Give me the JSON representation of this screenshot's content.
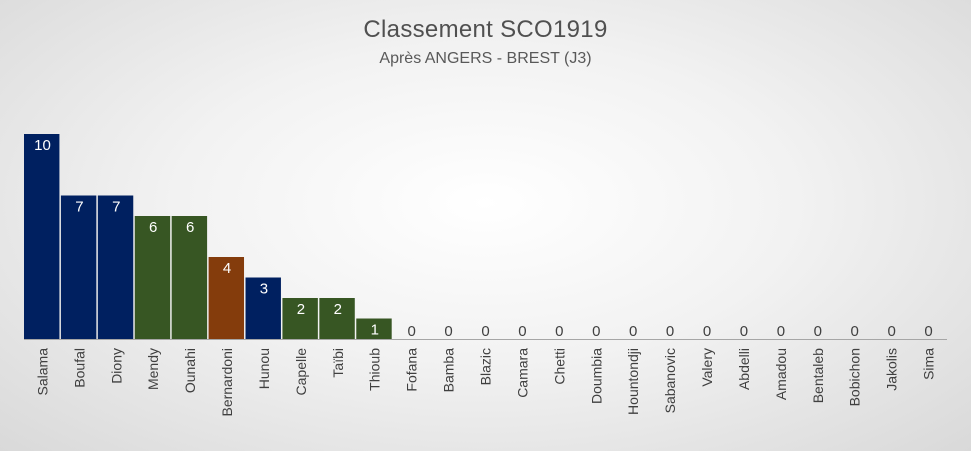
{
  "chart_data": {
    "type": "bar",
    "title": "Classement  SCO1919",
    "subtitle": "Après ANGERS - BREST (J3)",
    "categories": [
      "Salama",
      "Boufal",
      "Diony",
      "Mendy",
      "Ounahi",
      "Bernardoni",
      "Hunou",
      "Capelle",
      "Taïbi",
      "Thioub",
      "Fofana",
      "Bamba",
      "Blazic",
      "Camara",
      "Chetti",
      "Doumbia",
      "Hountondji",
      "Sabanovic",
      "Valery",
      "Abdelli",
      "Amadou",
      "Bentaleb",
      "Bobichon",
      "Jakolis",
      "Sima"
    ],
    "values": [
      10,
      7,
      7,
      6,
      6,
      4,
      3,
      2,
      2,
      1,
      0,
      0,
      0,
      0,
      0,
      0,
      0,
      0,
      0,
      0,
      0,
      0,
      0,
      0,
      0
    ],
    "colors": [
      "#002060",
      "#002060",
      "#002060",
      "#375623",
      "#375623",
      "#843C0C",
      "#002060",
      "#375623",
      "#375623",
      "#375623",
      "#002060",
      "#002060",
      "#002060",
      "#002060",
      "#002060",
      "#002060",
      "#002060",
      "#002060",
      "#002060",
      "#002060",
      "#002060",
      "#002060",
      "#002060",
      "#002060",
      "#002060"
    ],
    "ylim": [
      0,
      10
    ],
    "grid": false,
    "legend": "none"
  }
}
